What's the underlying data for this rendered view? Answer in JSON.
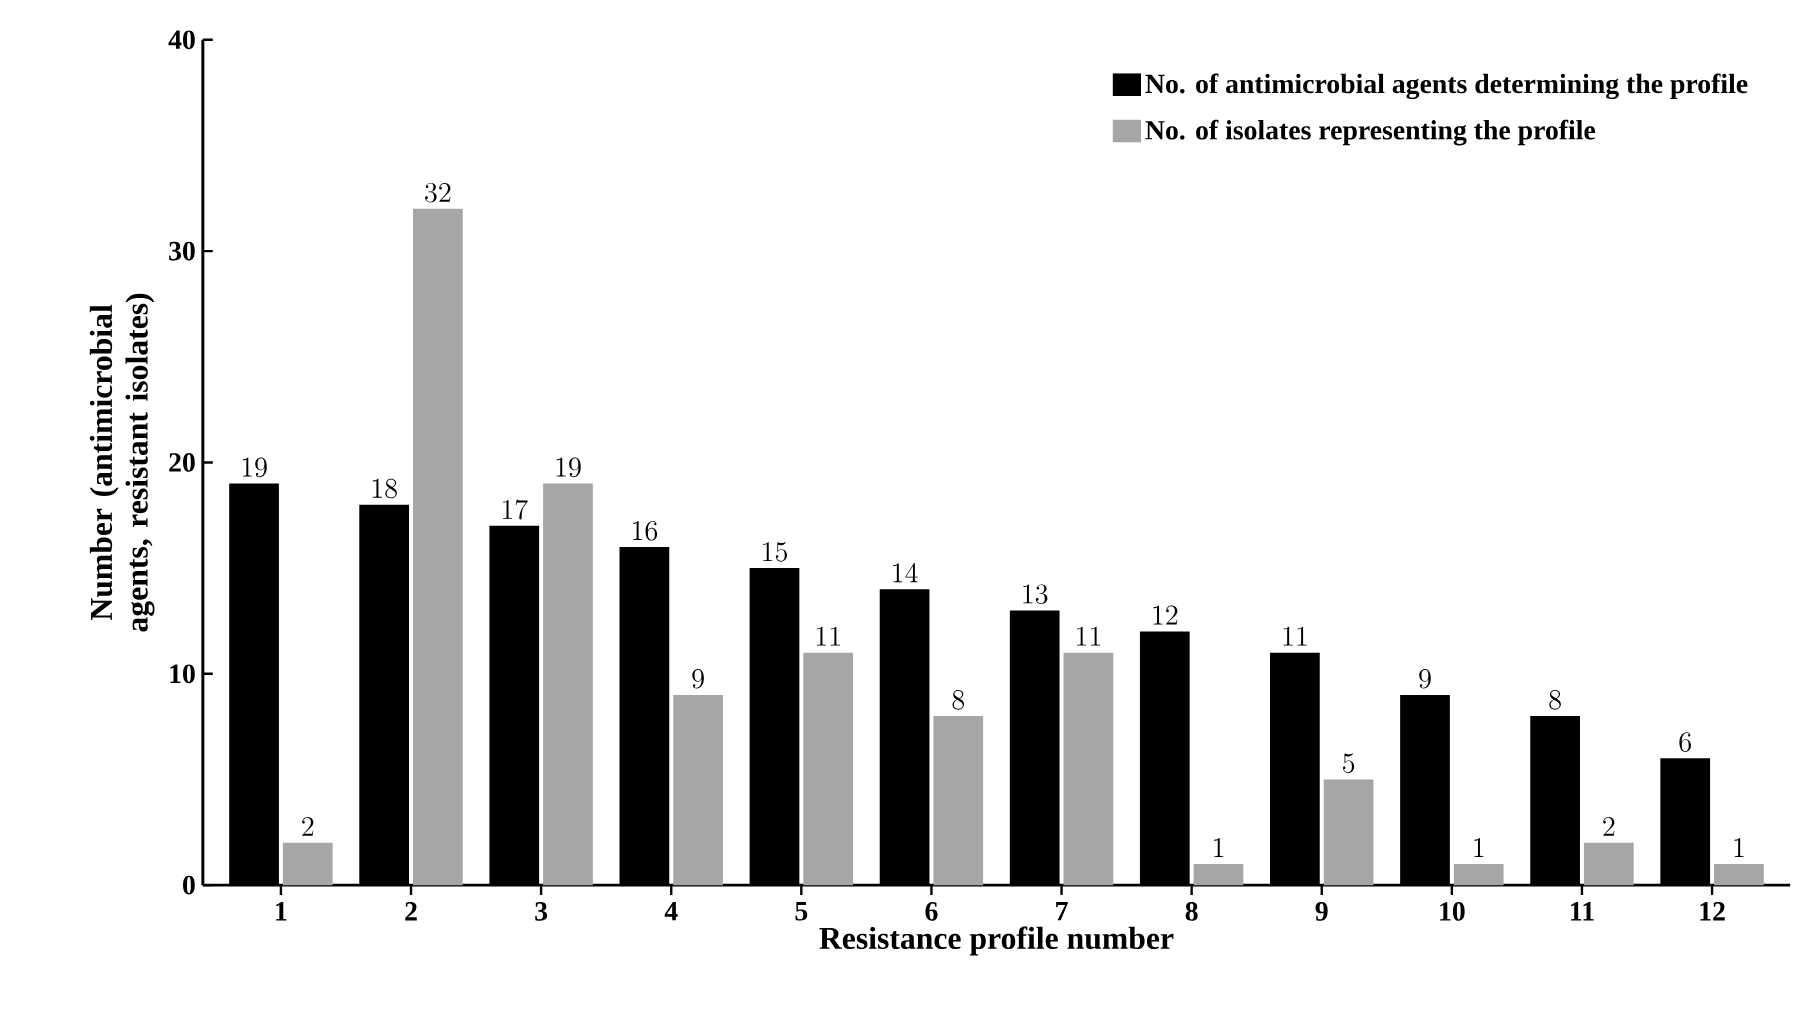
{
  "chart_data": {
    "type": "bar",
    "xlabel": "Resistance profile number",
    "ylabel": "Number (antimicrobial agents, resistant isolates)",
    "categories": [
      "1",
      "2",
      "3",
      "4",
      "5",
      "6",
      "7",
      "8",
      "9",
      "10",
      "11",
      "12"
    ],
    "series": [
      {
        "name": "No. of antimicrobial agents determining the profile",
        "color": "#000000",
        "values": [
          19,
          18,
          17,
          16,
          15,
          14,
          13,
          12,
          11,
          9,
          8,
          6
        ]
      },
      {
        "name": "No. of isolates representing the profile",
        "color": "#a6a6a6",
        "values": [
          2,
          32,
          19,
          9,
          11,
          8,
          11,
          1,
          5,
          1,
          2,
          1
        ]
      }
    ],
    "ylim": [
      0,
      40
    ],
    "yticks": [
      0,
      10,
      20,
      30,
      40
    ],
    "data_labels": true,
    "legend": "top right"
  }
}
